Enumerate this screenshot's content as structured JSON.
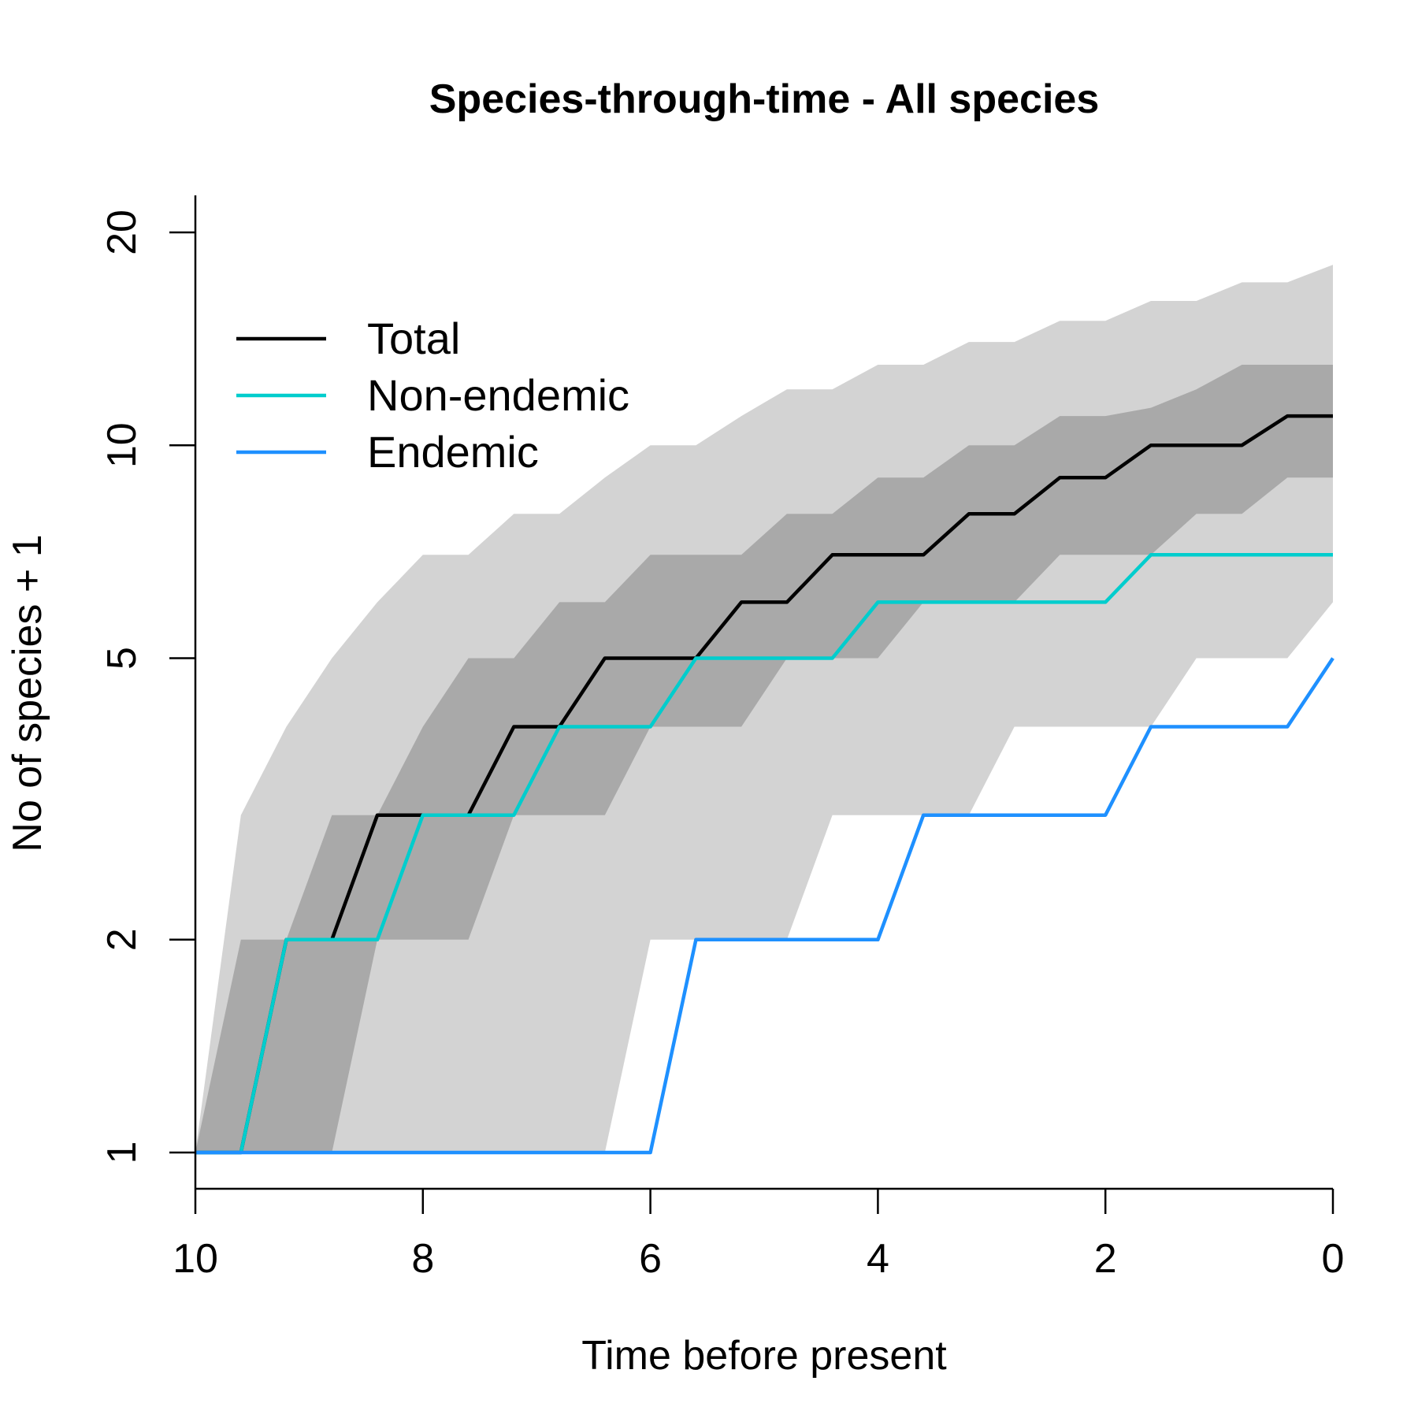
{
  "chart_data": {
    "type": "line",
    "title": "Species-through-time - All species",
    "xlabel": "Time before present",
    "ylabel": "No of species + 1",
    "x_reversed": true,
    "y_scale": "log",
    "xlim": [
      10,
      0
    ],
    "ylim": [
      1,
      20
    ],
    "x_ticks": [
      10,
      8,
      6,
      4,
      2,
      0
    ],
    "x_tick_labels": [
      "10",
      "8",
      "6",
      "4",
      "2",
      "0"
    ],
    "y_ticks": [
      1,
      2,
      5,
      10,
      20
    ],
    "y_tick_labels": [
      "1",
      "2",
      "5",
      "10",
      "20"
    ],
    "grid": false,
    "legend_position": "top-left",
    "colors": {
      "total": "#000000",
      "non_endemic": "#00CDCD",
      "endemic": "#1E90FF",
      "outer_band": "#D3D3D3",
      "inner_band": "#A9A9A9"
    },
    "series": [
      {
        "name": "Total",
        "key": "total",
        "x": [
          10,
          9.6,
          9.2,
          8.8,
          8.4,
          8.0,
          7.6,
          7.2,
          6.8,
          6.4,
          6.0,
          5.6,
          5.2,
          4.8,
          4.4,
          4.0,
          3.6,
          3.2,
          2.8,
          2.4,
          2.0,
          1.6,
          1.2,
          0.8,
          0.4,
          0.0
        ],
        "y": [
          1,
          1,
          2,
          2,
          3,
          3,
          3,
          4,
          4,
          5,
          5,
          5,
          6,
          6,
          7,
          7,
          7,
          8,
          8,
          9,
          9,
          10,
          10,
          10,
          11,
          11
        ]
      },
      {
        "name": "Non-endemic",
        "key": "non_endemic",
        "x": [
          10,
          9.6,
          9.2,
          8.8,
          8.4,
          8.0,
          7.6,
          7.2,
          6.8,
          6.4,
          6.0,
          5.6,
          5.2,
          4.8,
          4.4,
          4.0,
          3.6,
          3.2,
          2.8,
          2.4,
          2.0,
          1.6,
          1.2,
          0.8,
          0.4,
          0.0
        ],
        "y": [
          1,
          1,
          2,
          2,
          2,
          3,
          3,
          3,
          4,
          4,
          4,
          5,
          5,
          5,
          5,
          6,
          6,
          6,
          6,
          6,
          6,
          7,
          7,
          7,
          7,
          7
        ]
      },
      {
        "name": "Endemic",
        "key": "endemic",
        "x": [
          10,
          9.6,
          9.2,
          8.8,
          8.4,
          8.0,
          7.6,
          7.2,
          6.8,
          6.4,
          6.0,
          5.6,
          5.2,
          4.8,
          4.4,
          4.0,
          3.6,
          3.2,
          2.8,
          2.4,
          2.0,
          1.6,
          1.2,
          0.8,
          0.4,
          0.0
        ],
        "y": [
          1,
          1,
          1,
          1,
          1,
          1,
          1,
          1,
          1,
          1,
          1,
          2,
          2,
          2,
          2,
          2,
          3,
          3,
          3,
          3,
          3,
          4,
          4,
          4,
          4,
          5
        ]
      }
    ],
    "bands": [
      {
        "key": "outer_band",
        "x": [
          10,
          9.6,
          9.2,
          8.8,
          8.4,
          8.0,
          7.6,
          7.2,
          6.8,
          6.4,
          6.0,
          5.6,
          5.2,
          4.8,
          4.4,
          4.0,
          3.6,
          3.2,
          2.8,
          2.4,
          2.0,
          1.6,
          1.2,
          0.8,
          0.4,
          0.0
        ],
        "upper": [
          1,
          3,
          4,
          5,
          6,
          7,
          7,
          8,
          8,
          9,
          10,
          10,
          11,
          12,
          12,
          13,
          13,
          14,
          14,
          15,
          15,
          16,
          16,
          17,
          17,
          18
        ],
        "lower": [
          1,
          1,
          1,
          1,
          1,
          1,
          1,
          1,
          1,
          1,
          2,
          2,
          2,
          2,
          3,
          3,
          3,
          3,
          4,
          4,
          4,
          4,
          5,
          5,
          5,
          6
        ]
      },
      {
        "key": "inner_band",
        "x": [
          10,
          9.6,
          9.2,
          8.8,
          8.4,
          8.0,
          7.6,
          7.2,
          6.8,
          6.4,
          6.0,
          5.6,
          5.2,
          4.8,
          4.4,
          4.0,
          3.6,
          3.2,
          2.8,
          2.4,
          2.0,
          1.6,
          1.2,
          0.8,
          0.4,
          0.0
        ],
        "upper": [
          1,
          2,
          2,
          3,
          3,
          4,
          5,
          5,
          6,
          6,
          7,
          7,
          7,
          8,
          8,
          9,
          9,
          10,
          10,
          11,
          11,
          11.3,
          12,
          13,
          13,
          13
        ],
        "lower": [
          1,
          1,
          1,
          1,
          2,
          2,
          2,
          3,
          3,
          3,
          4,
          4,
          4,
          5,
          5,
          5,
          6,
          6,
          6,
          7,
          7,
          7,
          8,
          8,
          9,
          9
        ]
      }
    ]
  }
}
